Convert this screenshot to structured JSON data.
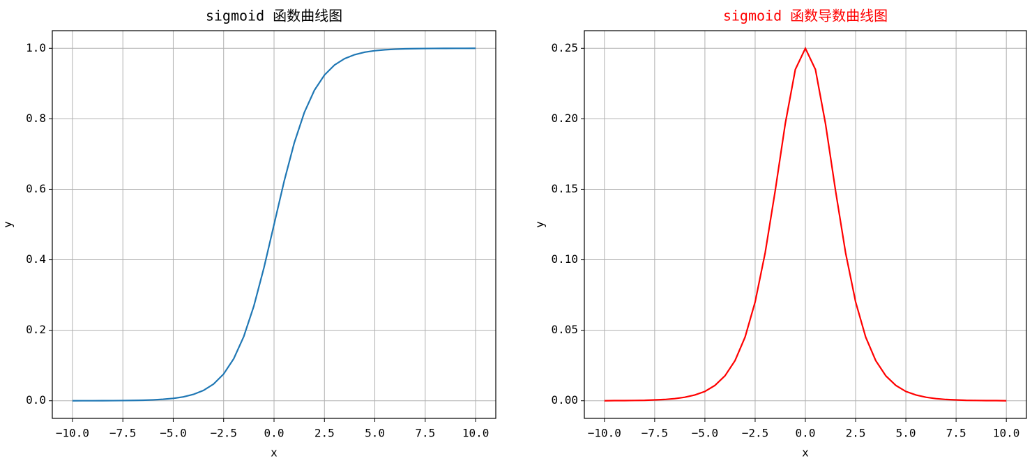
{
  "chart_data": [
    {
      "type": "line",
      "title": "sigmoid 函数曲线图",
      "title_color": "#000000",
      "xlabel": "x",
      "ylabel": "y",
      "x": [
        -10,
        -9.5,
        -9,
        -8.5,
        -8,
        -7.5,
        -7,
        -6.5,
        -6,
        -5.5,
        -5,
        -4.5,
        -4,
        -3.5,
        -3,
        -2.5,
        -2,
        -1.5,
        -1,
        -0.5,
        0,
        0.5,
        1,
        1.5,
        2,
        2.5,
        3,
        3.5,
        4,
        4.5,
        5,
        5.5,
        6,
        6.5,
        7,
        7.5,
        8,
        8.5,
        9,
        9.5,
        10
      ],
      "series": [
        {
          "color": "#1f77b4",
          "values": [
            0.0,
            0.0001,
            0.0001,
            0.0002,
            0.0003,
            0.0006,
            0.0009,
            0.0015,
            0.0025,
            0.0041,
            0.0067,
            0.011,
            0.018,
            0.0293,
            0.0474,
            0.0759,
            0.1192,
            0.1824,
            0.2689,
            0.3775,
            0.5,
            0.6225,
            0.7311,
            0.8176,
            0.8808,
            0.9241,
            0.9526,
            0.9707,
            0.982,
            0.989,
            0.9933,
            0.9959,
            0.9975,
            0.9985,
            0.9991,
            0.9994,
            0.9997,
            0.9998,
            0.9999,
            0.9999,
            1.0
          ]
        }
      ],
      "xlim": [
        -11,
        11
      ],
      "ylim": [
        -0.05,
        1.05
      ],
      "xticks": [
        {
          "value": -10,
          "label": "−10.0"
        },
        {
          "value": -7.5,
          "label": "−7.5"
        },
        {
          "value": -5,
          "label": "−5.0"
        },
        {
          "value": -2.5,
          "label": "−2.5"
        },
        {
          "value": 0,
          "label": "0.0"
        },
        2.5,
        {
          "value": 5,
          "label": "5.0"
        },
        7.5,
        {
          "value": 10,
          "label": "10.0"
        }
      ],
      "yticks": [
        {
          "value": 0,
          "label": "0.0"
        },
        0.2,
        0.4,
        0.6,
        0.8,
        {
          "value": 1,
          "label": "1.0"
        }
      ],
      "grid": true
    },
    {
      "type": "line",
      "title": "sigmoid 函数导数曲线图",
      "title_color": "#ff0000",
      "xlabel": "x",
      "ylabel": "y",
      "x": [
        -10,
        -9.5,
        -9,
        -8.5,
        -8,
        -7.5,
        -7,
        -6.5,
        -6,
        -5.5,
        -5,
        -4.5,
        -4,
        -3.5,
        -3,
        -2.5,
        -2,
        -1.5,
        -1,
        -0.5,
        0,
        0.5,
        1,
        1.5,
        2,
        2.5,
        3,
        3.5,
        4,
        4.5,
        5,
        5.5,
        6,
        6.5,
        7,
        7.5,
        8,
        8.5,
        9,
        9.5,
        10
      ],
      "series": [
        {
          "color": "#ff0000",
          "values": [
            0.0,
            0.0001,
            0.0001,
            0.0002,
            0.0003,
            0.0006,
            0.0009,
            0.0015,
            0.0025,
            0.0041,
            0.0066,
            0.0109,
            0.0177,
            0.0285,
            0.0452,
            0.0701,
            0.105,
            0.1491,
            0.1966,
            0.235,
            0.25,
            0.235,
            0.1966,
            0.1491,
            0.105,
            0.0701,
            0.0452,
            0.0285,
            0.0177,
            0.0109,
            0.0066,
            0.0041,
            0.0025,
            0.0015,
            0.0009,
            0.0006,
            0.0003,
            0.0002,
            0.0001,
            0.0001,
            0.0
          ]
        }
      ],
      "xlim": [
        -11,
        11
      ],
      "ylim": [
        -0.0125,
        0.2625
      ],
      "xticks": [
        {
          "value": -10,
          "label": "−10.0"
        },
        {
          "value": -7.5,
          "label": "−7.5"
        },
        {
          "value": -5,
          "label": "−5.0"
        },
        {
          "value": -2.5,
          "label": "−2.5"
        },
        {
          "value": 0,
          "label": "0.0"
        },
        2.5,
        {
          "value": 5,
          "label": "5.0"
        },
        7.5,
        {
          "value": 10,
          "label": "10.0"
        }
      ],
      "yticks": [
        {
          "value": 0,
          "label": "0.00"
        },
        0.05,
        {
          "value": 0.1,
          "label": "0.10"
        },
        0.15,
        {
          "value": 0.2,
          "label": "0.20"
        },
        0.25
      ],
      "grid": true
    }
  ]
}
